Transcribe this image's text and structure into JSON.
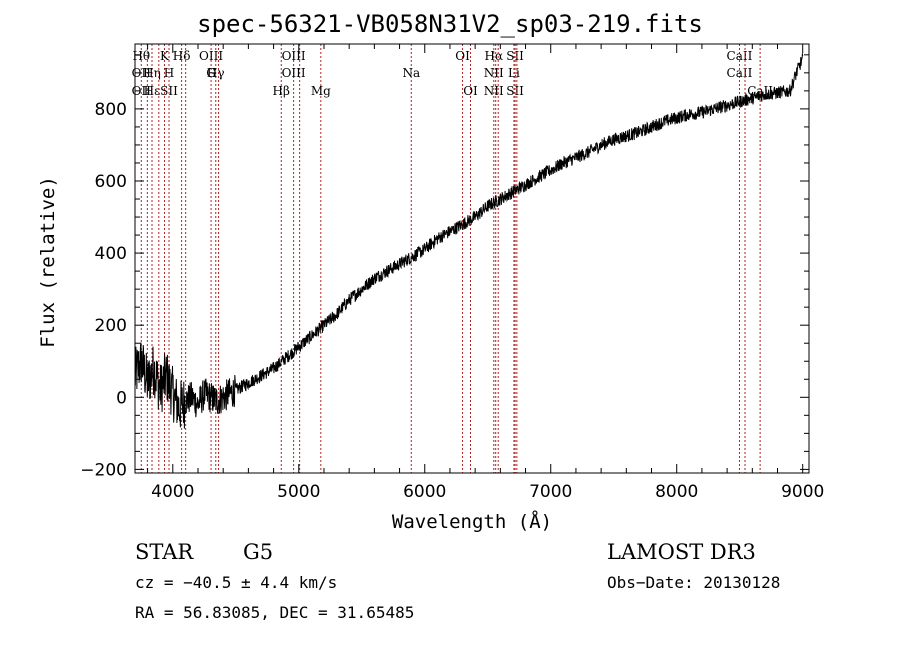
{
  "chart_data": {
    "type": "line",
    "title": "spec-56321-VB058N31V2_sp03-219.fits",
    "xlabel": "Wavelength (Å)",
    "ylabel": "Flux (relative)",
    "xlim": [
      3700,
      9050
    ],
    "ylim": [
      -210,
      980
    ],
    "xticks": [
      4000,
      5000,
      6000,
      7000,
      8000,
      9000
    ],
    "yticks": [
      -200,
      0,
      200,
      400,
      600,
      800
    ],
    "series": [
      {
        "name": "flux",
        "x": [
          3700,
          3750,
          3800,
          3850,
          3900,
          3950,
          4000,
          4050,
          4100,
          4150,
          4200,
          4250,
          4300,
          4350,
          4400,
          4500,
          4600,
          4700,
          4800,
          4900,
          5000,
          5100,
          5200,
          5300,
          5400,
          5500,
          5600,
          5700,
          5800,
          5900,
          6000,
          6100,
          6200,
          6300,
          6400,
          6500,
          6600,
          6700,
          6800,
          6900,
          7000,
          7100,
          7200,
          7300,
          7400,
          7500,
          7600,
          7700,
          7800,
          7900,
          8000,
          8100,
          8200,
          8300,
          8400,
          8500,
          8600,
          8700,
          8800,
          8900,
          8950,
          9000
        ],
        "y": [
          60,
          100,
          40,
          80,
          20,
          60,
          10,
          -30,
          -10,
          0,
          -20,
          10,
          0,
          -10,
          0,
          20,
          40,
          60,
          80,
          110,
          140,
          170,
          200,
          230,
          270,
          300,
          330,
          350,
          370,
          390,
          410,
          440,
          460,
          480,
          500,
          530,
          550,
          570,
          590,
          610,
          630,
          650,
          665,
          680,
          700,
          715,
          725,
          735,
          750,
          765,
          775,
          785,
          790,
          800,
          810,
          820,
          830,
          840,
          845,
          850,
          900,
          940
        ]
      }
    ],
    "lines": [
      {
        "x": 3750,
        "top": "Hθ",
        "mid": "OII",
        "bot": "OII"
      },
      {
        "x": 3798,
        "top": "",
        "mid": "",
        "bot": ""
      },
      {
        "x": 3835,
        "top": "",
        "mid": "Hη",
        "bot": "Hε"
      },
      {
        "x": 3889,
        "top": "",
        "mid": "",
        "bot": ""
      },
      {
        "x": 3934,
        "top": "K",
        "mid": "",
        "bot": ""
      },
      {
        "x": 3970,
        "top": "",
        "mid": "H",
        "bot": "SII"
      },
      {
        "x": 4070,
        "top": "Hδ",
        "mid": "",
        "bot": ""
      },
      {
        "x": 4102,
        "top": "",
        "mid": "",
        "bot": ""
      },
      {
        "x": 4304,
        "top": "OIII",
        "mid": "G",
        "bot": ""
      },
      {
        "x": 4341,
        "top": "",
        "mid": "Hγ",
        "bot": ""
      },
      {
        "x": 4363,
        "top": "",
        "mid": "",
        "bot": ""
      },
      {
        "x": 4861,
        "top": "",
        "mid": "",
        "bot": "Hβ"
      },
      {
        "x": 4959,
        "top": "OIII",
        "mid": "OIII",
        "bot": ""
      },
      {
        "x": 5007,
        "top": "",
        "mid": "",
        "bot": ""
      },
      {
        "x": 5175,
        "top": "",
        "mid": "",
        "bot": "Mg"
      },
      {
        "x": 5893,
        "top": "",
        "mid": "Na",
        "bot": ""
      },
      {
        "x": 6300,
        "top": "OI",
        "mid": "",
        "bot": ""
      },
      {
        "x": 6363,
        "top": "",
        "mid": "",
        "bot": "OI"
      },
      {
        "x": 6548,
        "top": "Hα",
        "mid": "NII",
        "bot": "NII"
      },
      {
        "x": 6563,
        "top": "",
        "mid": "",
        "bot": ""
      },
      {
        "x": 6583,
        "top": "",
        "mid": "",
        "bot": ""
      },
      {
        "x": 6708,
        "top": "",
        "mid": "Li",
        "bot": ""
      },
      {
        "x": 6717,
        "top": "SII",
        "mid": "",
        "bot": "SII"
      },
      {
        "x": 6731,
        "top": "",
        "mid": "",
        "bot": ""
      },
      {
        "x": 8498,
        "top": "CaII",
        "mid": "CaII",
        "bot": ""
      },
      {
        "x": 8542,
        "top": "",
        "mid": "",
        "bot": ""
      },
      {
        "x": 8662,
        "top": "",
        "mid": "",
        "bot": "CaII"
      }
    ]
  },
  "info": {
    "class_label": "STAR",
    "subclass_label": "G5",
    "survey": "LAMOST DR3",
    "cz": "cz = −40.5 ± 4.4 km/s",
    "obs_date": "Obs−Date: 20130128",
    "coords": "RA =  56.83085, DEC =  31.65485"
  }
}
